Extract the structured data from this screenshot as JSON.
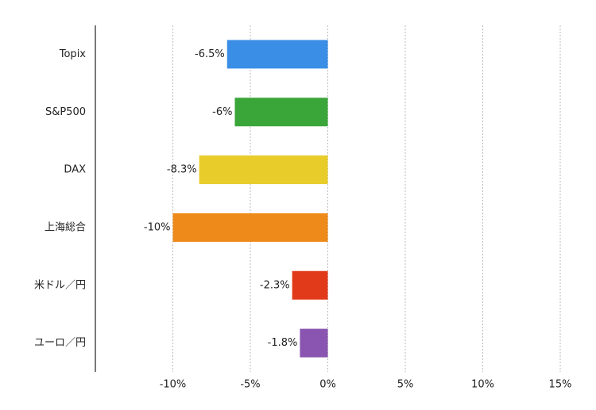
{
  "chart_data": {
    "type": "bar",
    "orientation": "horizontal",
    "categories": [
      "Topix",
      "S&P500",
      "DAX",
      "上海総合",
      "米ドル／円",
      "ユーロ／円"
    ],
    "values": [
      -6.5,
      -6,
      -8.3,
      -10,
      -2.3,
      -1.8
    ],
    "value_labels": [
      "-6.5%",
      "-6%",
      "-8.3%",
      "-10%",
      "-2.3%",
      "-1.8%"
    ],
    "colors": [
      "#3a8ee6",
      "#3aa63a",
      "#e8cc2a",
      "#ee8a1a",
      "#e03a1a",
      "#8a55b0"
    ],
    "xlim": [
      -15,
      15
    ],
    "xticks": [
      {
        "value": -10,
        "label": "-10%"
      },
      {
        "value": -5,
        "label": "-5%"
      },
      {
        "value": 0,
        "label": "0%"
      },
      {
        "value": 5,
        "label": "5%"
      },
      {
        "value": 10,
        "label": "10%"
      },
      {
        "value": 15,
        "label": "15%"
      }
    ],
    "grid": true
  }
}
